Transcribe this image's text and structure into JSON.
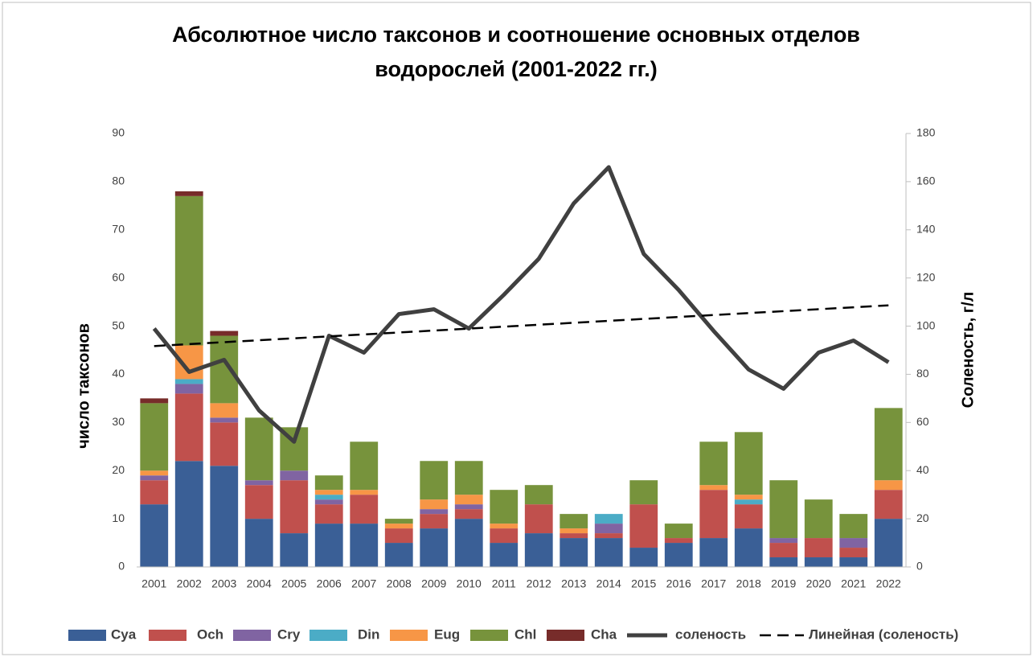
{
  "chart_data": {
    "type": "bar",
    "stacked": true,
    "title": "Абсолютное число таксонов и соотношение основных отделов водорослей (2001-2022  гг.)",
    "ylabel": "число таксонов",
    "y2label": "Соленость, г/л",
    "categories": [
      "2001",
      "2002",
      "2003",
      "2004",
      "2005",
      "2006",
      "2007",
      "2008",
      "2009",
      "2010",
      "2011",
      "2012",
      "2013",
      "2014",
      "2015",
      "2016",
      "2017",
      "2018",
      "2019",
      "2020",
      "2021",
      "2022"
    ],
    "ylim": [
      0,
      90
    ],
    "yticks": [
      0,
      10,
      20,
      30,
      40,
      50,
      60,
      70,
      80,
      90
    ],
    "y2lim": [
      0,
      180
    ],
    "y2ticks": [
      0,
      20,
      40,
      60,
      80,
      100,
      120,
      140,
      160,
      180
    ],
    "grid": false,
    "legend": "bottom",
    "series": [
      {
        "name": "Cya",
        "color": "#3a5f96",
        "values": [
          13,
          22,
          21,
          10,
          7,
          9,
          9,
          5,
          8,
          10,
          5,
          7,
          6,
          6,
          4,
          5,
          6,
          8,
          2,
          2,
          2,
          10
        ]
      },
      {
        "name": "Och",
        "color": "#c0504d",
        "values": [
          5,
          14,
          9,
          7,
          11,
          4,
          6,
          3,
          3,
          2,
          3,
          6,
          1,
          1,
          9,
          1,
          10,
          5,
          3,
          4,
          2,
          6
        ]
      },
      {
        "name": "Cry",
        "color": "#8064a2",
        "values": [
          1,
          2,
          1,
          1,
          2,
          1,
          0,
          0,
          1,
          1,
          0,
          0,
          0,
          2,
          0,
          0,
          0,
          0,
          1,
          0,
          2,
          0
        ]
      },
      {
        "name": "Din",
        "color": "#4bacc6",
        "values": [
          0,
          1,
          0,
          0,
          0,
          1,
          0,
          0,
          0,
          0,
          0,
          0,
          0,
          2,
          0,
          0,
          0,
          1,
          0,
          0,
          0,
          0
        ]
      },
      {
        "name": "Eug",
        "color": "#f79646",
        "values": [
          1,
          7,
          3,
          0,
          0,
          1,
          1,
          1,
          2,
          2,
          1,
          0,
          1,
          0,
          0,
          0,
          1,
          1,
          0,
          0,
          0,
          2
        ]
      },
      {
        "name": "Chl",
        "color": "#77933c",
        "values": [
          14,
          31,
          14,
          13,
          9,
          3,
          10,
          1,
          8,
          7,
          7,
          4,
          3,
          0,
          5,
          3,
          9,
          13,
          12,
          8,
          5,
          15
        ]
      },
      {
        "name": "Cha",
        "color": "#772c2a",
        "values": [
          1,
          1,
          1,
          0,
          0,
          0,
          0,
          0,
          0,
          0,
          0,
          0,
          0,
          0,
          0,
          0,
          0,
          0,
          0,
          0,
          0,
          0
        ]
      },
      {
        "name": "соленость",
        "type": "line",
        "axis": "y2",
        "color": "#404040",
        "values": [
          99,
          81,
          86,
          65,
          52,
          96,
          89,
          105,
          107,
          99,
          113,
          128,
          151,
          166,
          130,
          115,
          98,
          82,
          74,
          89,
          94,
          85
        ]
      }
    ],
    "trendline": {
      "name": "Линейная (соленость)",
      "type": "linear",
      "color": "#000000"
    }
  }
}
